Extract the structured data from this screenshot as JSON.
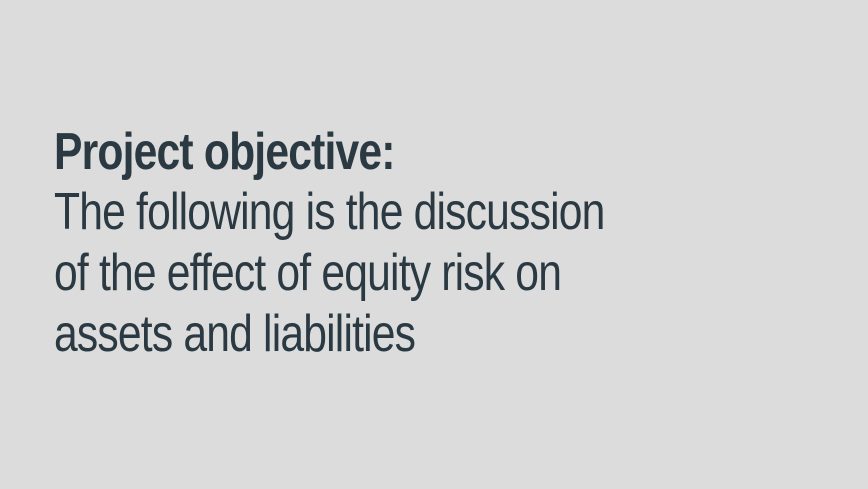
{
  "slide": {
    "heading": "Project objective:",
    "body_lines": [
      "The following is the discussion",
      "of the effect of equity risk on",
      "assets and liabilities"
    ]
  },
  "colors": {
    "background": "#dcdcdc",
    "text": "#2b3a42"
  }
}
